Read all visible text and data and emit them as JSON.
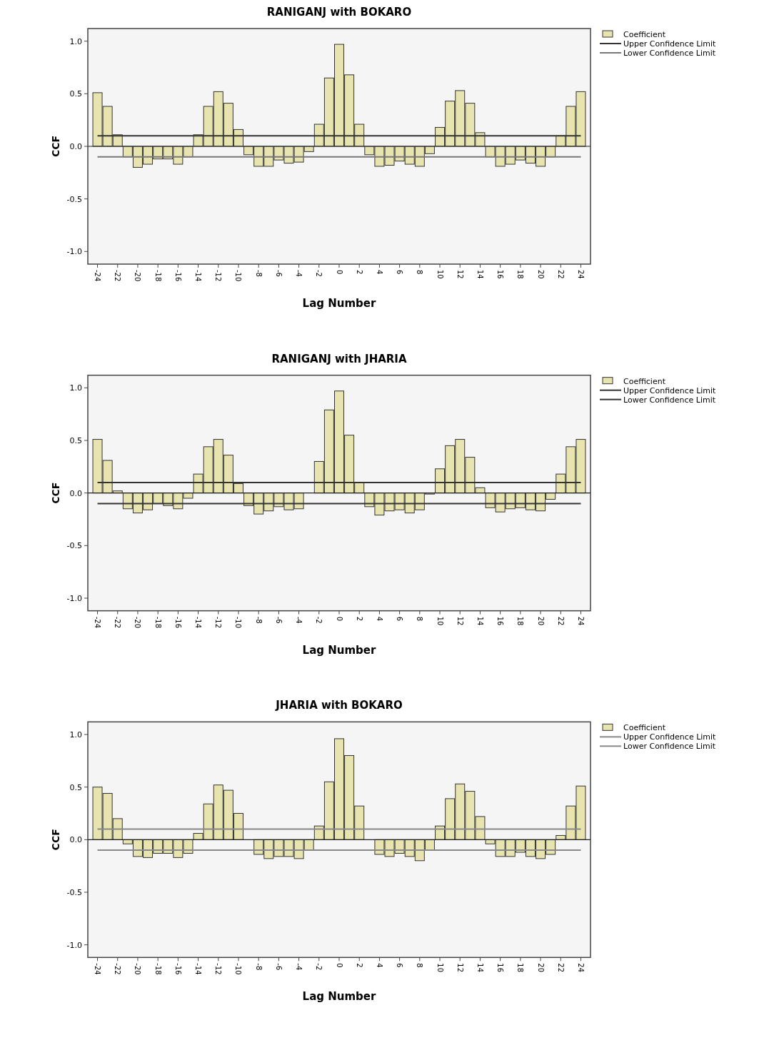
{
  "chart_data": [
    {
      "type": "bar",
      "title": "RANIGANJ with BOKARO",
      "xlabel": "Lag Number",
      "ylabel": "CCF",
      "categories": [
        "-24",
        null,
        "-22",
        null,
        "-20",
        null,
        "-18",
        null,
        "-16",
        null,
        "-14",
        null,
        "-12",
        null,
        "-10",
        null,
        "-8",
        null,
        "-6",
        null,
        "-4",
        null,
        "-2",
        null,
        "0",
        null,
        "2",
        null,
        "4",
        null,
        "6",
        null,
        "8",
        null,
        "10",
        null,
        "12",
        null,
        "14",
        null,
        "16",
        null,
        "18",
        null,
        "20",
        null,
        "22",
        null,
        "24"
      ],
      "ylim": [
        -1.12,
        1.12
      ],
      "yticks": [
        {
          "value": -1,
          "label": "-1.0"
        },
        {
          "value": -0.5,
          "label": "-0.5"
        },
        {
          "value": 0,
          "label": "0.0"
        },
        {
          "value": 0.5,
          "label": "0.5"
        },
        {
          "value": 1,
          "label": "1.0"
        }
      ],
      "legend": "top right",
      "series": [
        {
          "name": "Coefficient",
          "color": "#e8e4b0",
          "values": [
            0.51,
            0.38,
            0.11,
            -0.1,
            -0.2,
            -0.17,
            -0.12,
            -0.12,
            -0.17,
            -0.1,
            0.11,
            0.38,
            0.52,
            0.41,
            0.16,
            -0.08,
            -0.19,
            -0.19,
            -0.13,
            -0.16,
            -0.15,
            -0.05,
            0.21,
            0.65,
            0.97,
            0.68,
            0.21,
            -0.08,
            -0.19,
            -0.18,
            -0.14,
            -0.17,
            -0.19,
            -0.07,
            0.18,
            0.43,
            0.53,
            0.41,
            0.13,
            -0.1,
            -0.19,
            -0.17,
            -0.13,
            -0.16,
            -0.19,
            -0.1,
            0.1,
            0.38,
            0.52
          ]
        },
        {
          "name": "Upper Confidence Limit",
          "type": "line",
          "color": "#333333",
          "values": [
            0.1,
            0.1,
            0.1,
            0.1,
            0.1,
            0.1,
            0.1,
            0.1,
            0.1,
            0.1,
            0.1,
            0.1,
            0.1,
            0.1,
            0.1,
            0.1,
            0.1,
            0.1,
            0.1,
            0.1,
            0.1,
            0.1,
            0.1,
            0.1,
            0.1,
            0.1,
            0.1,
            0.1,
            0.1,
            0.1,
            0.1,
            0.1,
            0.1,
            0.1,
            0.1,
            0.1,
            0.1,
            0.1,
            0.1,
            0.1,
            0.1,
            0.1,
            0.1,
            0.1,
            0.1,
            0.1,
            0.1,
            0.1,
            0.1
          ]
        },
        {
          "name": "Lower Confidence Limit",
          "type": "line",
          "color": "#777777",
          "values": [
            -0.1,
            -0.1,
            -0.1,
            -0.1,
            -0.1,
            -0.1,
            -0.1,
            -0.1,
            -0.1,
            -0.1,
            -0.1,
            -0.1,
            -0.1,
            -0.1,
            -0.1,
            -0.1,
            -0.1,
            -0.1,
            -0.1,
            -0.1,
            -0.1,
            -0.1,
            -0.1,
            -0.1,
            -0.1,
            -0.1,
            -0.1,
            -0.1,
            -0.1,
            -0.1,
            -0.1,
            -0.1,
            -0.1,
            -0.1,
            -0.1,
            -0.1,
            -0.1,
            -0.1,
            -0.1,
            -0.1,
            -0.1,
            -0.1,
            -0.1,
            -0.1,
            -0.1,
            -0.1,
            -0.1,
            -0.1,
            -0.1
          ]
        }
      ]
    },
    {
      "type": "bar",
      "title": "RANIGANJ with JHARIA",
      "xlabel": "Lag Number",
      "ylabel": "CCF",
      "categories": [
        "-24",
        null,
        "-22",
        null,
        "-20",
        null,
        "-18",
        null,
        "-16",
        null,
        "-14",
        null,
        "-12",
        null,
        "-10",
        null,
        "-8",
        null,
        "-6",
        null,
        "-4",
        null,
        "-2",
        null,
        "0",
        null,
        "2",
        null,
        "4",
        null,
        "6",
        null,
        "8",
        null,
        "10",
        null,
        "12",
        null,
        "14",
        null,
        "16",
        null,
        "18",
        null,
        "20",
        null,
        "22",
        null,
        "24"
      ],
      "ylim": [
        -1.12,
        1.12
      ],
      "yticks": [
        {
          "value": -1,
          "label": "-1.0"
        },
        {
          "value": -0.5,
          "label": "-0.5"
        },
        {
          "value": 0,
          "label": "0.0"
        },
        {
          "value": 0.5,
          "label": "0.5"
        },
        {
          "value": 1,
          "label": "1.0"
        }
      ],
      "legend": "top right",
      "series": [
        {
          "name": "Coefficient",
          "color": "#e8e4b0",
          "values": [
            0.51,
            0.31,
            0.02,
            -0.15,
            -0.19,
            -0.16,
            -0.1,
            -0.12,
            -0.15,
            -0.05,
            0.18,
            0.44,
            0.51,
            0.36,
            0.09,
            -0.12,
            -0.2,
            -0.17,
            -0.13,
            -0.16,
            -0.15,
            0.0,
            0.3,
            0.79,
            0.97,
            0.55,
            0.1,
            -0.13,
            -0.21,
            -0.17,
            -0.16,
            -0.19,
            -0.16,
            -0.01,
            0.23,
            0.45,
            0.51,
            0.34,
            0.05,
            -0.14,
            -0.18,
            -0.15,
            -0.14,
            -0.16,
            -0.17,
            -0.06,
            0.18,
            0.44,
            0.51
          ]
        },
        {
          "name": "Upper Confidence Limit",
          "type": "line",
          "color": "#333333",
          "values": [
            0.1,
            0.1,
            0.1,
            0.1,
            0.1,
            0.1,
            0.1,
            0.1,
            0.1,
            0.1,
            0.1,
            0.1,
            0.1,
            0.1,
            0.1,
            0.1,
            0.1,
            0.1,
            0.1,
            0.1,
            0.1,
            0.1,
            0.1,
            0.1,
            0.1,
            0.1,
            0.1,
            0.1,
            0.1,
            0.1,
            0.1,
            0.1,
            0.1,
            0.1,
            0.1,
            0.1,
            0.1,
            0.1,
            0.1,
            0.1,
            0.1,
            0.1,
            0.1,
            0.1,
            0.1,
            0.1,
            0.1,
            0.1,
            0.1
          ]
        },
        {
          "name": "Lower Confidence Limit",
          "type": "line",
          "color": "#333333",
          "values": [
            -0.1,
            -0.1,
            -0.1,
            -0.1,
            -0.1,
            -0.1,
            -0.1,
            -0.1,
            -0.1,
            -0.1,
            -0.1,
            -0.1,
            -0.1,
            -0.1,
            -0.1,
            -0.1,
            -0.1,
            -0.1,
            -0.1,
            -0.1,
            -0.1,
            -0.1,
            -0.1,
            -0.1,
            -0.1,
            -0.1,
            -0.1,
            -0.1,
            -0.1,
            -0.1,
            -0.1,
            -0.1,
            -0.1,
            -0.1,
            -0.1,
            -0.1,
            -0.1,
            -0.1,
            -0.1,
            -0.1,
            -0.1,
            -0.1,
            -0.1,
            -0.1,
            -0.1,
            -0.1,
            -0.1,
            -0.1,
            -0.1
          ]
        }
      ]
    },
    {
      "type": "bar",
      "title": "JHARIA with BOKARO",
      "xlabel": "Lag Number",
      "ylabel": "CCF",
      "categories": [
        "-24",
        null,
        "-22",
        null,
        "-20",
        null,
        "-18",
        null,
        "-16",
        null,
        "-14",
        null,
        "-12",
        null,
        "-10",
        null,
        "-8",
        null,
        "-6",
        null,
        "-4",
        null,
        "-2",
        null,
        "0",
        null,
        "2",
        null,
        "4",
        null,
        "6",
        null,
        "8",
        null,
        "10",
        null,
        "12",
        null,
        "14",
        null,
        "16",
        null,
        "18",
        null,
        "20",
        null,
        "22",
        null,
        "24"
      ],
      "ylim": [
        -1.12,
        1.12
      ],
      "yticks": [
        {
          "value": -1,
          "label": "-1.0"
        },
        {
          "value": -0.5,
          "label": "-0.5"
        },
        {
          "value": 0,
          "label": "0.0"
        },
        {
          "value": 0.5,
          "label": "0.5"
        },
        {
          "value": 1,
          "label": "1.0"
        }
      ],
      "legend": "top right",
      "series": [
        {
          "name": "Coefficient",
          "color": "#e8e4b0",
          "values": [
            0.5,
            0.44,
            0.2,
            -0.04,
            -0.16,
            -0.17,
            -0.13,
            -0.13,
            -0.17,
            -0.13,
            0.06,
            0.34,
            0.52,
            0.47,
            0.25,
            0.0,
            -0.14,
            -0.18,
            -0.16,
            -0.16,
            -0.18,
            -0.1,
            0.13,
            0.55,
            0.96,
            0.8,
            0.32,
            0.0,
            -0.14,
            -0.16,
            -0.13,
            -0.16,
            -0.2,
            -0.1,
            0.13,
            0.39,
            0.53,
            0.46,
            0.22,
            -0.04,
            -0.16,
            -0.16,
            -0.12,
            -0.16,
            -0.18,
            -0.14,
            0.04,
            0.32,
            0.51
          ]
        },
        {
          "name": "Upper Confidence Limit",
          "type": "line",
          "color": "#888888",
          "values": [
            0.1,
            0.1,
            0.1,
            0.1,
            0.1,
            0.1,
            0.1,
            0.1,
            0.1,
            0.1,
            0.1,
            0.1,
            0.1,
            0.1,
            0.1,
            0.1,
            0.1,
            0.1,
            0.1,
            0.1,
            0.1,
            0.1,
            0.1,
            0.1,
            0.1,
            0.1,
            0.1,
            0.1,
            0.1,
            0.1,
            0.1,
            0.1,
            0.1,
            0.1,
            0.1,
            0.1,
            0.1,
            0.1,
            0.1,
            0.1,
            0.1,
            0.1,
            0.1,
            0.1,
            0.1,
            0.1,
            0.1,
            0.1,
            0.1
          ]
        },
        {
          "name": "Lower Confidence Limit",
          "type": "line",
          "color": "#888888",
          "values": [
            -0.1,
            -0.1,
            -0.1,
            -0.1,
            -0.1,
            -0.1,
            -0.1,
            -0.1,
            -0.1,
            -0.1,
            -0.1,
            -0.1,
            -0.1,
            -0.1,
            -0.1,
            -0.1,
            -0.1,
            -0.1,
            -0.1,
            -0.1,
            -0.1,
            -0.1,
            -0.1,
            -0.1,
            -0.1,
            -0.1,
            -0.1,
            -0.1,
            -0.1,
            -0.1,
            -0.1,
            -0.1,
            -0.1,
            -0.1,
            -0.1,
            -0.1,
            -0.1,
            -0.1,
            -0.1,
            -0.1,
            -0.1,
            -0.1,
            -0.1,
            -0.1,
            -0.1,
            -0.1,
            -0.1,
            -0.1,
            -0.1
          ]
        }
      ]
    }
  ]
}
